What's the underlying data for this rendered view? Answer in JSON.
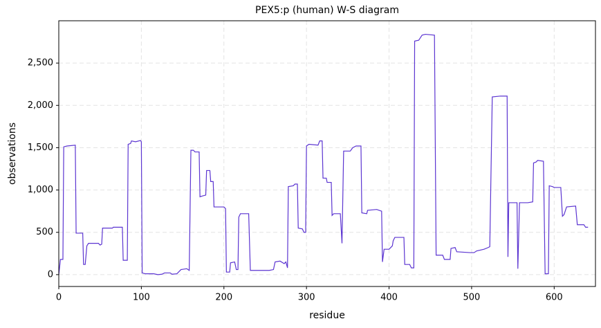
{
  "chart_data": {
    "type": "line",
    "title": "PEX5:p (human) W-S diagram",
    "xlabel": "residue",
    "ylabel": "observations",
    "color": "#5b34d1",
    "x": [
      0,
      2,
      5,
      6,
      10,
      20,
      21,
      25,
      29,
      30,
      32,
      34,
      36,
      48,
      50,
      52,
      53,
      65,
      66,
      77,
      78,
      83,
      84,
      87,
      88,
      93,
      99,
      100,
      101,
      105,
      115,
      120,
      125,
      128,
      135,
      137,
      143,
      148,
      155,
      158,
      160,
      163,
      165,
      170,
      171,
      174,
      178,
      179,
      183,
      184,
      187,
      188,
      200,
      202,
      203,
      207,
      208,
      213,
      215,
      217,
      218,
      220,
      230,
      232,
      250,
      255,
      260,
      262,
      268,
      273,
      275,
      277,
      278,
      284,
      286,
      289,
      290,
      295,
      297,
      299,
      300,
      303,
      314,
      316,
      319,
      320,
      324,
      325,
      330,
      331,
      333,
      341,
      343,
      345,
      353,
      356,
      360,
      366,
      367,
      373,
      374,
      385,
      391,
      392,
      394,
      400,
      404,
      405,
      407,
      418,
      419,
      425,
      427,
      430,
      431,
      436,
      438,
      440,
      444,
      455,
      457,
      460,
      465,
      467,
      474,
      475,
      480,
      482,
      498,
      503,
      506,
      515,
      520,
      522,
      525,
      535,
      543,
      544,
      545,
      555,
      556,
      558,
      568,
      574,
      575,
      578,
      580,
      587,
      589,
      593,
      594,
      598,
      600,
      608,
      610,
      612,
      615,
      626,
      628,
      636,
      638,
      641
    ],
    "values": [
      0,
      180,
      180,
      1510,
      1520,
      1530,
      490,
      490,
      490,
      120,
      120,
      340,
      370,
      370,
      350,
      360,
      550,
      550,
      560,
      560,
      170,
      170,
      1540,
      1550,
      1580,
      1570,
      1585,
      1570,
      20,
      10,
      10,
      0,
      5,
      20,
      20,
      5,
      10,
      60,
      70,
      50,
      1470,
      1470,
      1450,
      1450,
      920,
      930,
      940,
      1230,
      1230,
      1100,
      1100,
      800,
      800,
      780,
      30,
      30,
      140,
      150,
      60,
      60,
      680,
      720,
      720,
      50,
      50,
      50,
      60,
      150,
      160,
      130,
      150,
      80,
      1040,
      1050,
      1070,
      1070,
      550,
      540,
      500,
      500,
      1520,
      1540,
      1530,
      1580,
      1580,
      1140,
      1140,
      1090,
      1090,
      700,
      720,
      720,
      370,
      1460,
      1460,
      1500,
      1520,
      1520,
      730,
      720,
      760,
      770,
      750,
      150,
      300,
      300,
      340,
      400,
      440,
      440,
      120,
      120,
      80,
      80,
      2760,
      2770,
      2800,
      2830,
      2840,
      2830,
      230,
      230,
      230,
      180,
      180,
      310,
      320,
      270,
      260,
      260,
      280,
      300,
      320,
      330,
      2100,
      2110,
      2110,
      210,
      850,
      850,
      70,
      850,
      850,
      860,
      1320,
      1330,
      1350,
      1340,
      10,
      10,
      1050,
      1040,
      1030,
      1030,
      690,
      710,
      800,
      810,
      590,
      590,
      560,
      560
    ],
    "xlim": [
      0,
      650
    ],
    "xticks": [
      0,
      100,
      200,
      300,
      400,
      500,
      600
    ],
    "ylim": [
      -140,
      3000
    ],
    "yticks": [
      0,
      500,
      {
        "value": 1000,
        "label": "1,000"
      },
      {
        "value": 1500,
        "label": "1,500"
      },
      {
        "value": 2000,
        "label": "2,000"
      },
      {
        "value": 2500,
        "label": "2,500"
      }
    ],
    "grid": true
  }
}
